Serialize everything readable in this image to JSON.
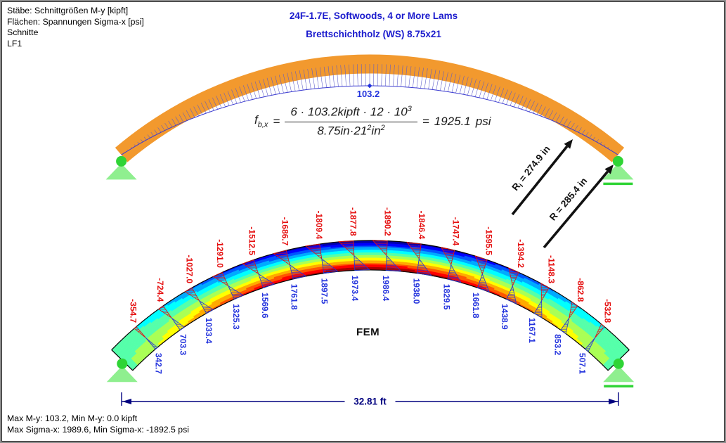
{
  "window": {
    "info_lines": [
      "Stäbe: Schnittgrößen M-y [kipft]",
      "Flächen: Spannungen Sigma-x [psi]",
      "Schnitte",
      "LF1"
    ],
    "status_lines": [
      "Max M-y: 103.2, Min M-y: 0.0 kipft",
      "Max Sigma-x: 1989.6, Min Sigma-x: -1892.5 psi"
    ]
  },
  "title": {
    "line1": "24F-1.7E, Softwoods, 4 or More Lams",
    "line2": "Brettschichtholz (WS) 8.75x21"
  },
  "moment_diagram": {
    "peak_label": "103.2",
    "max_kipft": 103.2,
    "min_kipft": 0.0
  },
  "formula": {
    "lhs": "f",
    "lhs_sub": "b,x",
    "eq": "=",
    "num_a": "6 · 103.2",
    "num_unit": "kipft",
    "num_b": " · 12 · 10",
    "num_exp": "3",
    "den_a": "8.75",
    "den_u1": "in",
    "den_b": "·21",
    "den_e1": "2",
    "den_u2": "in",
    "den_e2": "2",
    "eq2": "=",
    "result": "1925.1",
    "result_unit": "psi"
  },
  "radius_annotations": {
    "inner": {
      "prefix": "R",
      "sub": "i",
      "rest": " = 274.9 in"
    },
    "outer": {
      "prefix": "R",
      "sub": "",
      "rest": " = 285.4 in"
    }
  },
  "fem": {
    "caption": "FEM",
    "section_stress_top_psi": [
      "-354.7",
      "-724.4",
      "-1027.0",
      "-1291.0",
      "-1512.5",
      "-1686.7",
      "-1809.4",
      "-1877.8",
      "-1890.2",
      "-1846.4",
      "-1747.4",
      "-1595.5",
      "-1394.2",
      "-1148.3",
      "-862.8",
      "-532.8"
    ],
    "section_stress_bottom_psi": [
      "342.7",
      "703.3",
      "1033.4",
      "1325.3",
      "1569.6",
      "1761.8",
      "1897.5",
      "1973.4",
      "1986.4",
      "1938.0",
      "1829.5",
      "1661.8",
      "1438.9",
      "1167.1",
      "853.2",
      "507.1"
    ],
    "max_sigma_x_psi": 1989.6,
    "min_sigma_x_psi": -1892.5
  },
  "dimension": {
    "span_label": "32.81 ft"
  },
  "colors": {
    "arch_orange": "#F2992E",
    "title_blue": "#1A1ACD",
    "label_red": "#E51010",
    "label_blue": "#2333DD",
    "dim_navy": "#00007F",
    "support_green": "#2FD435",
    "support_light_green": "#8FEF8F",
    "moment_hatch_blue": "#5A5AC8",
    "envelope_blue": "#3B3BD0"
  }
}
